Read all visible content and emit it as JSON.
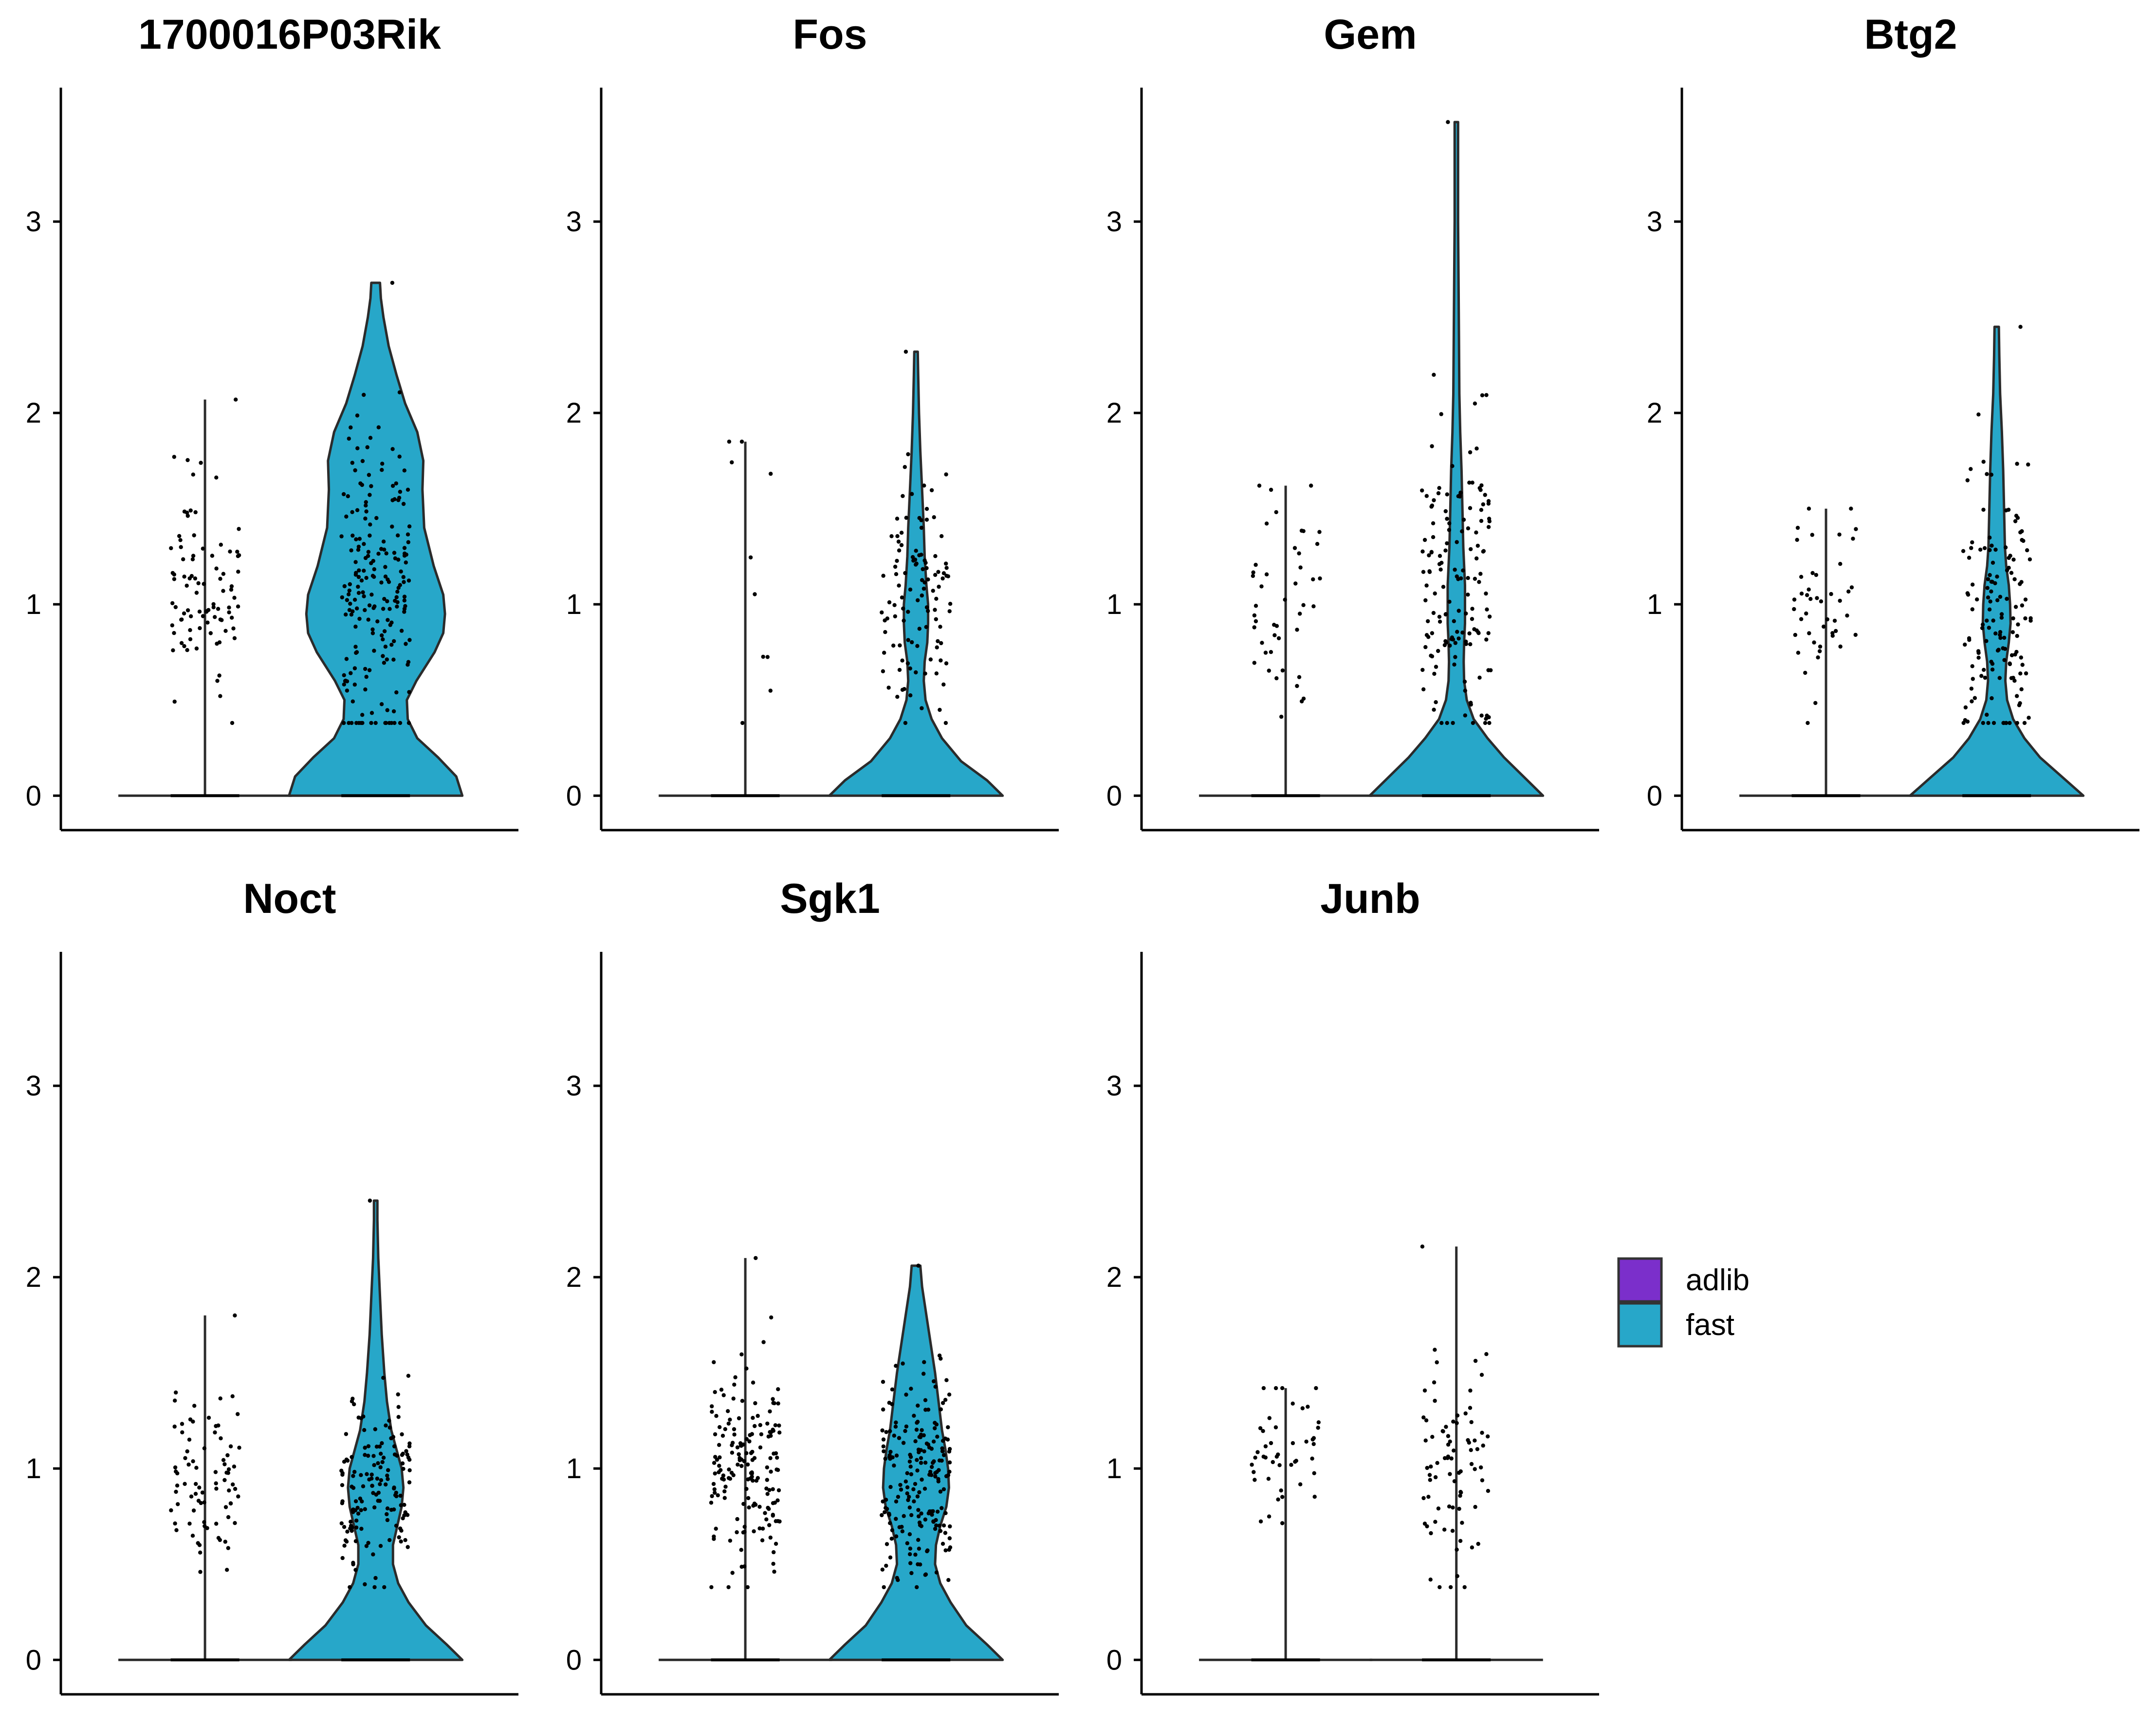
{
  "chart_data": {
    "type": "violin",
    "ylim": [
      -0.18,
      3.7
    ],
    "yticks": [
      0,
      1,
      2,
      3
    ],
    "legend": {
      "placement": "right",
      "entries": [
        {
          "label": "adlib",
          "color": "#7B2FCB"
        },
        {
          "label": "fast",
          "color": "#27A7C9"
        }
      ]
    },
    "groups": [
      "adlib",
      "fast"
    ],
    "panels": [
      {
        "title": "1700016P03Rik",
        "violins": [
          {
            "group": "adlib",
            "max": 2.07,
            "zero_frac": 0.9,
            "peak": 1.05,
            "spread": 0.28,
            "n_points": 90,
            "width_profile": []
          },
          {
            "group": "fast",
            "max": 2.68,
            "zero_frac": 0.35,
            "peak": 1.1,
            "spread": 0.45,
            "n_points": 200,
            "width_profile": [
              [
                0,
                1.0
              ],
              [
                0.1,
                0.93
              ],
              [
                0.2,
                0.72
              ],
              [
                0.3,
                0.48
              ],
              [
                0.4,
                0.37
              ],
              [
                0.5,
                0.36
              ],
              [
                0.6,
                0.47
              ],
              [
                0.75,
                0.68
              ],
              [
                0.85,
                0.78
              ],
              [
                0.95,
                0.8
              ],
              [
                1.05,
                0.78
              ],
              [
                1.2,
                0.67
              ],
              [
                1.4,
                0.56
              ],
              [
                1.6,
                0.54
              ],
              [
                1.75,
                0.55
              ],
              [
                1.9,
                0.48
              ],
              [
                2.05,
                0.34
              ],
              [
                2.2,
                0.24
              ],
              [
                2.35,
                0.15
              ],
              [
                2.5,
                0.09
              ],
              [
                2.6,
                0.06
              ],
              [
                2.68,
                0.05
              ]
            ]
          }
        ]
      },
      {
        "title": "Fos",
        "violins": [
          {
            "group": "adlib",
            "max": 1.85,
            "zero_frac": 0.97,
            "peak": 1.2,
            "spread": 0.4,
            "n_points": 10,
            "width_profile": []
          },
          {
            "group": "fast",
            "max": 2.32,
            "zero_frac": 0.85,
            "peak": 1.0,
            "spread": 0.3,
            "n_points": 110,
            "width_profile": [
              [
                0,
                1.0
              ],
              [
                0.08,
                0.82
              ],
              [
                0.18,
                0.52
              ],
              [
                0.3,
                0.3
              ],
              [
                0.4,
                0.18
              ],
              [
                0.5,
                0.11
              ],
              [
                0.6,
                0.09
              ],
              [
                0.7,
                0.1
              ],
              [
                0.8,
                0.13
              ],
              [
                0.9,
                0.14
              ],
              [
                1.0,
                0.14
              ],
              [
                1.1,
                0.12
              ],
              [
                1.25,
                0.1
              ],
              [
                1.4,
                0.09
              ],
              [
                1.6,
                0.07
              ],
              [
                1.8,
                0.05
              ],
              [
                2.0,
                0.035
              ],
              [
                2.2,
                0.025
              ],
              [
                2.32,
                0.02
              ]
            ]
          }
        ]
      },
      {
        "title": "Gem",
        "violins": [
          {
            "group": "adlib",
            "max": 1.62,
            "zero_frac": 0.95,
            "peak": 1.0,
            "spread": 0.28,
            "n_points": 45,
            "width_profile": []
          },
          {
            "group": "fast",
            "max": 3.52,
            "zero_frac": 0.8,
            "peak": 1.1,
            "spread": 0.45,
            "n_points": 150,
            "width_profile": [
              [
                0,
                1.0
              ],
              [
                0.08,
                0.82
              ],
              [
                0.2,
                0.55
              ],
              [
                0.3,
                0.36
              ],
              [
                0.4,
                0.2
              ],
              [
                0.5,
                0.12
              ],
              [
                0.6,
                0.09
              ],
              [
                0.7,
                0.085
              ],
              [
                0.8,
                0.09
              ],
              [
                0.9,
                0.1
              ],
              [
                1.0,
                0.1
              ],
              [
                1.1,
                0.1
              ],
              [
                1.3,
                0.08
              ],
              [
                1.5,
                0.07
              ],
              [
                1.7,
                0.06
              ],
              [
                1.9,
                0.045
              ],
              [
                2.1,
                0.035
              ],
              [
                2.4,
                0.03
              ],
              [
                2.7,
                0.025
              ],
              [
                3.0,
                0.02
              ],
              [
                3.3,
                0.02
              ],
              [
                3.52,
                0.02
              ]
            ]
          }
        ]
      },
      {
        "title": "Btg2",
        "violins": [
          {
            "group": "adlib",
            "max": 1.5,
            "zero_frac": 0.95,
            "peak": 1.0,
            "spread": 0.25,
            "n_points": 45,
            "width_profile": []
          },
          {
            "group": "fast",
            "max": 2.45,
            "zero_frac": 0.8,
            "peak": 0.9,
            "spread": 0.4,
            "n_points": 140,
            "width_profile": [
              [
                0,
                1.0
              ],
              [
                0.08,
                0.8
              ],
              [
                0.2,
                0.5
              ],
              [
                0.3,
                0.32
              ],
              [
                0.4,
                0.19
              ],
              [
                0.5,
                0.12
              ],
              [
                0.6,
                0.1
              ],
              [
                0.7,
                0.11
              ],
              [
                0.8,
                0.14
              ],
              [
                0.9,
                0.16
              ],
              [
                1.0,
                0.155
              ],
              [
                1.1,
                0.14
              ],
              [
                1.2,
                0.11
              ],
              [
                1.3,
                0.095
              ],
              [
                1.5,
                0.085
              ],
              [
                1.7,
                0.075
              ],
              [
                1.9,
                0.06
              ],
              [
                2.1,
                0.04
              ],
              [
                2.3,
                0.03
              ],
              [
                2.45,
                0.025
              ]
            ]
          }
        ]
      },
      {
        "title": "Noct",
        "violins": [
          {
            "group": "adlib",
            "max": 1.8,
            "zero_frac": 0.95,
            "peak": 1.0,
            "spread": 0.25,
            "n_points": 80,
            "width_profile": []
          },
          {
            "group": "fast",
            "max": 2.4,
            "zero_frac": 0.75,
            "peak": 0.9,
            "spread": 0.25,
            "n_points": 150,
            "width_profile": [
              [
                0,
                1.0
              ],
              [
                0.08,
                0.82
              ],
              [
                0.18,
                0.58
              ],
              [
                0.3,
                0.38
              ],
              [
                0.4,
                0.26
              ],
              [
                0.5,
                0.2
              ],
              [
                0.6,
                0.2
              ],
              [
                0.7,
                0.25
              ],
              [
                0.8,
                0.3
              ],
              [
                0.9,
                0.32
              ],
              [
                1.0,
                0.3
              ],
              [
                1.1,
                0.24
              ],
              [
                1.2,
                0.18
              ],
              [
                1.35,
                0.13
              ],
              [
                1.5,
                0.1
              ],
              [
                1.7,
                0.07
              ],
              [
                1.9,
                0.05
              ],
              [
                2.1,
                0.03
              ],
              [
                2.3,
                0.02
              ],
              [
                2.4,
                0.02
              ]
            ]
          }
        ]
      },
      {
        "title": "Sgk1",
        "violins": [
          {
            "group": "adlib",
            "max": 2.1,
            "zero_frac": 0.9,
            "peak": 1.0,
            "spread": 0.3,
            "n_points": 170,
            "width_profile": []
          },
          {
            "group": "fast",
            "max": 2.06,
            "zero_frac": 0.75,
            "peak": 0.95,
            "spread": 0.3,
            "n_points": 200,
            "width_profile": [
              [
                0,
                1.0
              ],
              [
                0.08,
                0.82
              ],
              [
                0.18,
                0.58
              ],
              [
                0.3,
                0.4
              ],
              [
                0.4,
                0.28
              ],
              [
                0.5,
                0.22
              ],
              [
                0.6,
                0.23
              ],
              [
                0.7,
                0.28
              ],
              [
                0.8,
                0.35
              ],
              [
                0.9,
                0.38
              ],
              [
                1.0,
                0.37
              ],
              [
                1.1,
                0.34
              ],
              [
                1.2,
                0.3
              ],
              [
                1.35,
                0.26
              ],
              [
                1.5,
                0.22
              ],
              [
                1.65,
                0.17
              ],
              [
                1.8,
                0.12
              ],
              [
                1.95,
                0.07
              ],
              [
                2.06,
                0.05
              ]
            ]
          }
        ]
      },
      {
        "title": "Junb",
        "violins": [
          {
            "group": "adlib",
            "max": 1.42,
            "zero_frac": 0.97,
            "peak": 1.0,
            "spread": 0.25,
            "n_points": 45,
            "width_profile": []
          },
          {
            "group": "fast",
            "max": 2.16,
            "zero_frac": 0.97,
            "peak": 1.0,
            "spread": 0.3,
            "n_points": 80,
            "width_profile": []
          }
        ]
      }
    ]
  }
}
